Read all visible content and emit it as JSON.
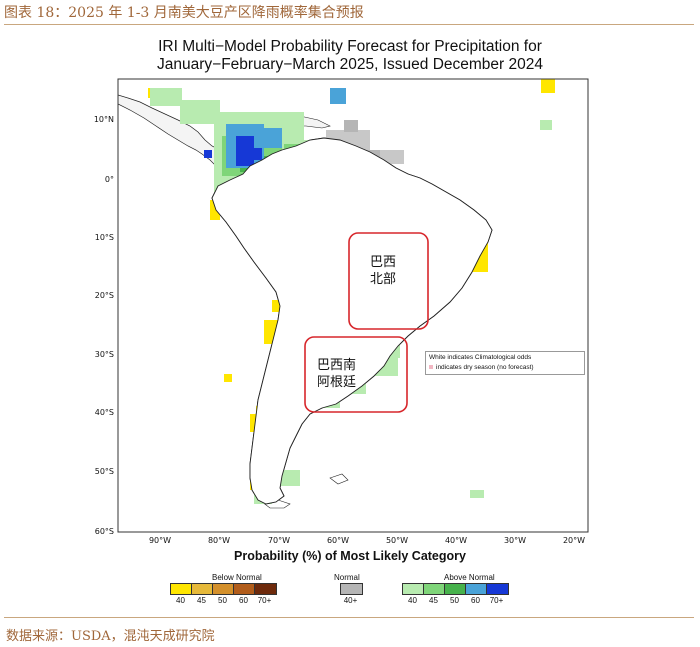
{
  "caption": "图表 18：2025 年 1-3 月南美大豆产区降雨概率集合预报",
  "map": {
    "title_line1": "IRI Multi−Model Probability Forecast for Precipitation for",
    "title_line2": "January−February−March 2025, Issued December 2024",
    "lat_labels": [
      "10°N",
      "0°",
      "10°S",
      "20°S",
      "30°S",
      "40°S",
      "50°S",
      "60°S"
    ],
    "lon_labels": [
      "90°W",
      "80°W",
      "70°W",
      "60°W",
      "50°W",
      "40°W",
      "30°W",
      "20°W"
    ],
    "note_line1": "White indicates Climatological odds",
    "note_line2": "indicates dry season (no forecast)",
    "regions": [
      {
        "line1": "巴西",
        "line2": "北部"
      },
      {
        "line1": "巴西南",
        "line2": "阿根廷"
      }
    ],
    "region_color": "#d7262b"
  },
  "legend": {
    "title": "Probability (%) of Most Likely Category",
    "below_normal": {
      "label": "Below Normal",
      "ticks": [
        "40",
        "45",
        "50",
        "60",
        "70+"
      ],
      "colors": [
        "#ffe600",
        "#e6b93a",
        "#d4902b",
        "#b25d1b",
        "#6e2a0c"
      ]
    },
    "normal": {
      "label": "Normal",
      "ticks": [
        "40+"
      ],
      "colors": [
        "#b5b5b5"
      ]
    },
    "above_normal": {
      "label": "Above Normal",
      "ticks": [
        "40",
        "45",
        "50",
        "60",
        "70+"
      ],
      "colors": [
        "#b8ebb0",
        "#7fd579",
        "#47b24c",
        "#4aa3d8",
        "#1638d6"
      ]
    }
  },
  "source": "数据来源：USDA，混沌天成研究院"
}
